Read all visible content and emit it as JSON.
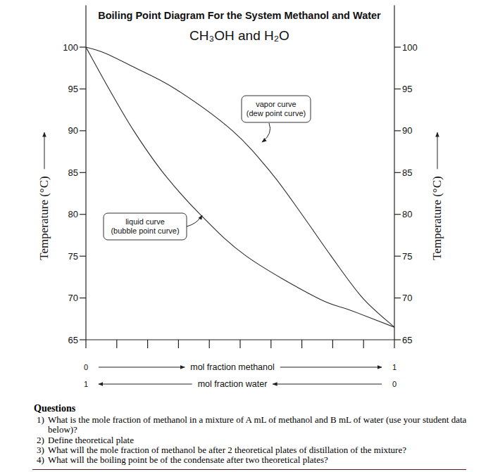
{
  "chart_data": {
    "type": "line",
    "title": "Boiling Point Diagram For the System Methanol and Water",
    "subtitle": "CH₃OH and H₂O",
    "xlabel": "mol fraction methanol",
    "x2label": "mol fraction water",
    "ylabel": "Temperature (°C)",
    "y2label": "Temperature (°C)",
    "xlim": [
      0,
      1
    ],
    "xticks": [
      0,
      1
    ],
    "x_minor_ticks": [
      0.1,
      0.2,
      0.3,
      0.4,
      0.5,
      0.6,
      0.7,
      0.8,
      0.9
    ],
    "x2lim": [
      1,
      0
    ],
    "x2ticks": [
      1,
      0
    ],
    "ylim": [
      65,
      105
    ],
    "yticks": [
      65,
      70,
      75,
      80,
      85,
      90,
      95,
      100
    ],
    "y2lim": [
      65,
      105
    ],
    "y2ticks": [
      65,
      70,
      75,
      80,
      85,
      90,
      95,
      100
    ],
    "grid": false,
    "series": [
      {
        "annotation": [
          "liquid curve",
          "(bubble point curve)"
        ],
        "color": "#2b2b2b",
        "line_style": "solid",
        "x": [
          0,
          0.075,
          0.155,
          0.25,
          0.37,
          0.52,
          0.75,
          0.86,
          1
        ],
        "values": [
          100,
          95,
          90,
          85,
          80,
          75,
          70,
          68.5,
          66.5
        ]
      },
      {
        "annotation": [
          "vapor curve",
          "(dew point curve)"
        ],
        "color": "#2b2b2b",
        "line_style": "solid",
        "x": [
          0,
          0.06,
          0.15,
          0.29,
          0.475,
          0.6,
          0.7,
          0.795,
          0.897,
          1
        ],
        "values": [
          100,
          99.3,
          97.7,
          95,
          90,
          85,
          80,
          75,
          70,
          66.5
        ]
      }
    ]
  },
  "questions": {
    "heading": "Questions",
    "items": [
      {
        "number": "1)",
        "text": "What is the mole fraction of methanol in a mixture of A mL of methanol and B mL of water (use your student data below)?"
      },
      {
        "number": "2)",
        "text": "Define theoretical plate"
      },
      {
        "number": "3)",
        "text": "What will the mole fraction of methanol be after 2 theoretical plates of distillation of the mixture?"
      },
      {
        "number": "4)",
        "text": "What will the boiling point be of the condensate after two theoretical plates?"
      }
    ]
  }
}
